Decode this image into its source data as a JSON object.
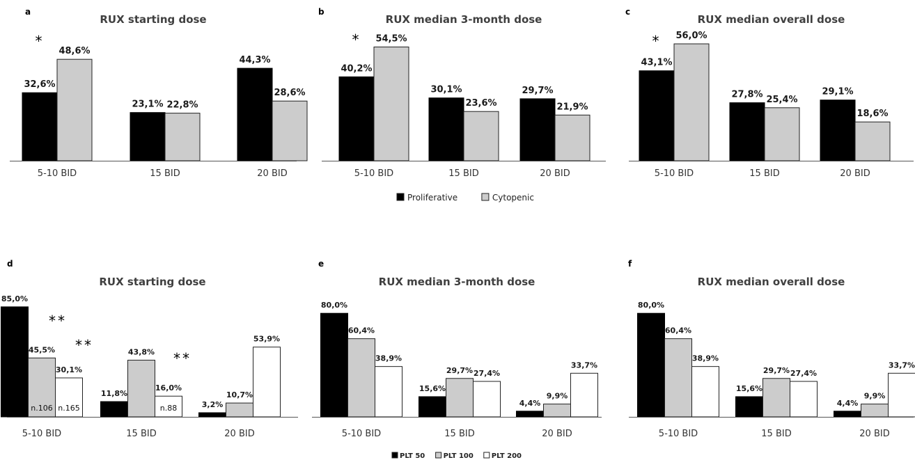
{
  "legend_top": {
    "items": [
      {
        "label": "Proliferative",
        "color": "#000000"
      },
      {
        "label": "Cytopenic",
        "color": "#cccccc"
      }
    ]
  },
  "legend_bottom": {
    "items": [
      {
        "label": "PLT 50",
        "color": "#000000"
      },
      {
        "label": "PLT 100",
        "color": "#cccccc"
      },
      {
        "label": "PLT  200",
        "color": "#ffffff"
      }
    ]
  },
  "chart_data": [
    {
      "panel": "a",
      "type": "bar",
      "title": "RUX starting dose",
      "categories": [
        "5-10 BID",
        "15 BID",
        "20 BID"
      ],
      "series": [
        {
          "name": "Proliferative",
          "color": "#000000",
          "values": [
            32.6,
            23.1,
            44.3
          ],
          "labels": [
            "32,6%",
            "23,1%",
            "44,3%"
          ]
        },
        {
          "name": "Cytopenic",
          "color": "#cccccc",
          "values": [
            48.6,
            22.8,
            28.6
          ],
          "labels": [
            "48,6%",
            "22,8%",
            "28,6%"
          ]
        }
      ],
      "annotations": [
        {
          "text": "*",
          "category": 0
        }
      ]
    },
    {
      "panel": "b",
      "type": "bar",
      "title": "RUX median 3-month dose",
      "categories": [
        "5-10 BID",
        "15 BID",
        "20 BID"
      ],
      "series": [
        {
          "name": "Proliferative",
          "color": "#000000",
          "values": [
            40.2,
            30.1,
            29.7
          ],
          "labels": [
            "40,2%",
            "30,1%",
            "29,7%"
          ]
        },
        {
          "name": "Cytopenic",
          "color": "#cccccc",
          "values": [
            54.5,
            23.6,
            21.9
          ],
          "labels": [
            "54,5%",
            "23,6%",
            "21,9%"
          ]
        }
      ],
      "annotations": [
        {
          "text": "*",
          "category": 0
        }
      ]
    },
    {
      "panel": "c",
      "type": "bar",
      "title": "RUX median overall dose",
      "categories": [
        "5-10 BID",
        "15 BID",
        "20 BID"
      ],
      "series": [
        {
          "name": "Proliferative",
          "color": "#000000",
          "values": [
            43.1,
            27.8,
            29.1
          ],
          "labels": [
            "43,1%",
            "27,8%",
            "29,1%"
          ]
        },
        {
          "name": "Cytopenic",
          "color": "#cccccc",
          "values": [
            56.0,
            25.4,
            18.6
          ],
          "labels": [
            "56,0%",
            "25,4%",
            "18,6%"
          ]
        }
      ],
      "annotations": [
        {
          "text": "*",
          "category": 0
        }
      ]
    },
    {
      "panel": "d",
      "type": "bar",
      "title": "RUX starting dose",
      "categories": [
        "5-10 BID",
        "15 BID",
        "20 BID"
      ],
      "series": [
        {
          "name": "PLT 50",
          "color": "#000000",
          "values": [
            85.0,
            11.8,
            3.2
          ],
          "labels": [
            "85,0%",
            "11,8%",
            "3,2%"
          ]
        },
        {
          "name": "PLT 100",
          "color": "#cccccc",
          "values": [
            45.5,
            43.8,
            10.7
          ],
          "labels": [
            "45,5%",
            "43,8%",
            "10,7%"
          ]
        },
        {
          "name": "PLT  200",
          "color": "#ffffff",
          "values": [
            30.1,
            16.0,
            53.9
          ],
          "labels": [
            "30,1%",
            "16,0%",
            "53,9%"
          ]
        }
      ],
      "inbar_labels": [
        {
          "series": 1,
          "category": 0,
          "text": "n.106"
        },
        {
          "series": 2,
          "category": 0,
          "text": "n.165"
        },
        {
          "series": 2,
          "category": 1,
          "text": "n.88"
        }
      ],
      "annotations": [
        {
          "text": "**",
          "category": 0,
          "series": 1
        },
        {
          "text": "**",
          "category": 0,
          "series": 2
        },
        {
          "text": "**",
          "category": 1,
          "series": 2
        }
      ]
    },
    {
      "panel": "e",
      "type": "bar",
      "title": "RUX median 3-month dose",
      "categories": [
        "5-10 BID",
        "15 BID",
        "20 BID"
      ],
      "series": [
        {
          "name": "PLT 50",
          "color": "#000000",
          "values": [
            80.0,
            15.6,
            4.4
          ],
          "labels": [
            "80,0%",
            "15,6%",
            "4,4%"
          ]
        },
        {
          "name": "PLT 100",
          "color": "#cccccc",
          "values": [
            60.4,
            29.7,
            9.9
          ],
          "labels": [
            "60,4%",
            "29,7%",
            "9,9%"
          ]
        },
        {
          "name": "PLT  200",
          "color": "#ffffff",
          "values": [
            38.9,
            27.4,
            33.7
          ],
          "labels": [
            "38,9%",
            "27,4%",
            "33,7%"
          ]
        }
      ]
    },
    {
      "panel": "f",
      "type": "bar",
      "title": "RUX median overall dose",
      "categories": [
        "5-10 BID",
        "15 BID",
        "20 BID"
      ],
      "series": [
        {
          "name": "PLT 50",
          "color": "#000000",
          "values": [
            80.0,
            15.6,
            4.4
          ],
          "labels": [
            "80,0%",
            "15,6%",
            "4,4%"
          ]
        },
        {
          "name": "PLT 100",
          "color": "#cccccc",
          "values": [
            60.4,
            29.7,
            9.9
          ],
          "labels": [
            "60,4%",
            "29,7%",
            "9,9%"
          ]
        },
        {
          "name": "PLT  200",
          "color": "#ffffff",
          "values": [
            38.9,
            27.4,
            33.7
          ],
          "labels": [
            "38,9%",
            "27,4%",
            "33,7%"
          ]
        }
      ]
    }
  ]
}
